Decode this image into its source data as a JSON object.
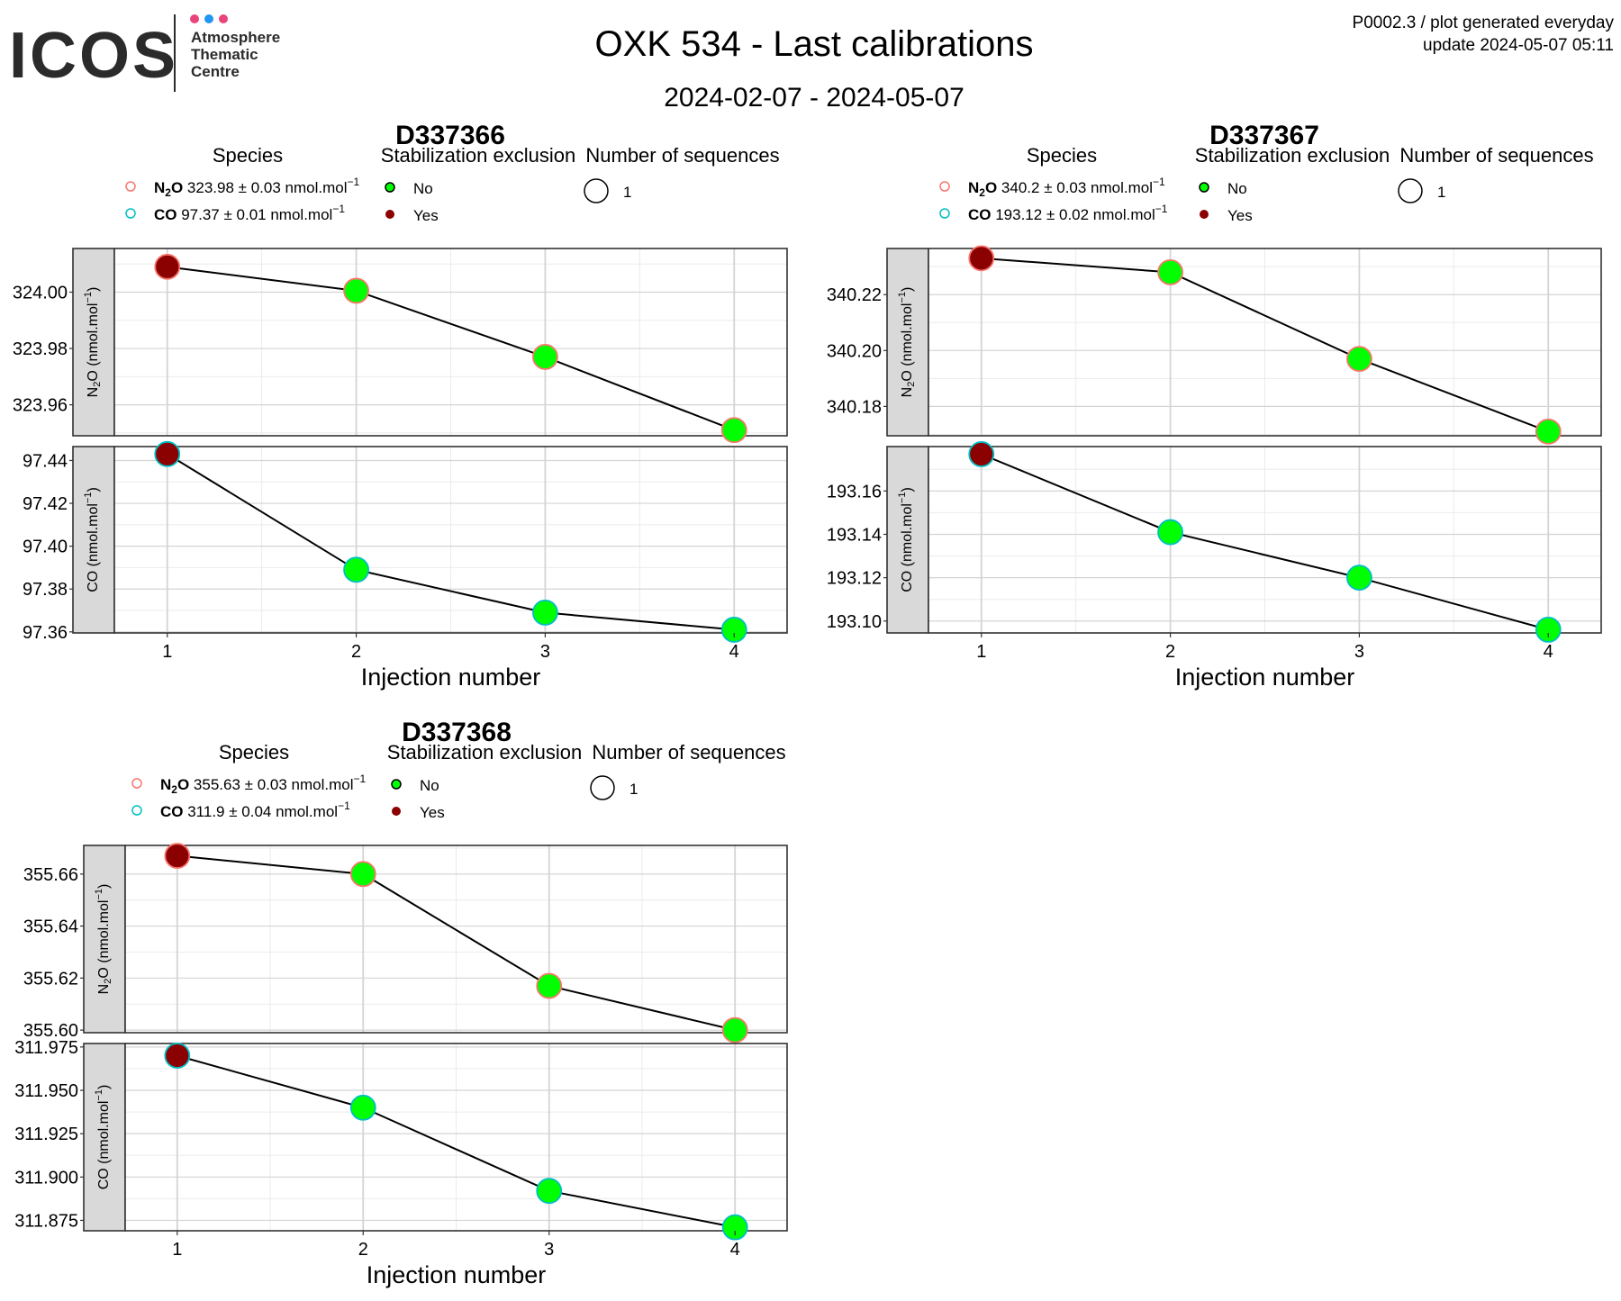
{
  "logo": {
    "brand": "ICOS",
    "line1": "Atmosphere",
    "line2": "Thematic",
    "line3": "Centre",
    "dot_colors": [
      "#e8457a",
      "#2196f3",
      "#e8457a"
    ]
  },
  "header": {
    "title": "OXK 534 - Last calibrations",
    "subtitle": "2024-02-07 - 2024-05-07",
    "info_line1": "P0002.3 / plot generated everyday",
    "info_line2": "update  2024-05-07 05:11"
  },
  "legend_labels": {
    "species": "Species",
    "stabilization": "Stabilization exclusion",
    "sequences": "Number of sequences",
    "no": "No",
    "yes": "Yes",
    "seq_count": "1"
  },
  "colors": {
    "no_fill": "#00ff00",
    "yes_fill": "#8b0000",
    "n2o_outline": "#f8766d",
    "co_outline": "#00bfc4",
    "line": "#000000"
  },
  "chart_data": [
    {
      "type": "line",
      "title": "D337366",
      "xlabel": "Injection number",
      "x": [
        1,
        2,
        3,
        4
      ],
      "excluded": [
        true,
        false,
        false,
        false
      ],
      "legend": [
        {
          "species": "N2O",
          "text": "323.98 ± 0.03 nmol.mol"
        },
        {
          "species": "CO",
          "text": "97.37 ± 0.01 nmol.mol"
        }
      ],
      "panels": [
        {
          "species": "N2O",
          "ylabel": "N2O (nmol.mol-1)",
          "values": [
            324.009,
            324.0005,
            323.977,
            323.951
          ],
          "ylim": [
            323.949,
            324.0155
          ],
          "ticks": [
            323.96,
            323.98,
            324.0
          ],
          "tick_labels": [
            "323.96",
            "323.98",
            "324.00"
          ]
        },
        {
          "species": "CO",
          "ylabel": "CO (nmol.mol-1)",
          "values": [
            97.443,
            97.389,
            97.369,
            97.361
          ],
          "ylim": [
            97.3595,
            97.4465
          ],
          "ticks": [
            97.36,
            97.38,
            97.4,
            97.42,
            97.44
          ],
          "tick_labels": [
            "97.36",
            "97.38",
            "97.40",
            "97.42",
            "97.44"
          ]
        }
      ]
    },
    {
      "type": "line",
      "title": "D337367",
      "xlabel": "Injection number",
      "x": [
        1,
        2,
        3,
        4
      ],
      "excluded": [
        true,
        false,
        false,
        false
      ],
      "legend": [
        {
          "species": "N2O",
          "text": "340.2 ± 0.03 nmol.mol"
        },
        {
          "species": "CO",
          "text": "193.12 ± 0.02 nmol.mol"
        }
      ],
      "panels": [
        {
          "species": "N2O",
          "ylabel": "N2O (nmol.mol-1)",
          "values": [
            340.233,
            340.228,
            340.197,
            340.171
          ],
          "ylim": [
            340.1695,
            340.2365
          ],
          "ticks": [
            340.18,
            340.2,
            340.22
          ],
          "tick_labels": [
            "340.18",
            "340.20",
            "340.22"
          ]
        },
        {
          "species": "CO",
          "ylabel": "CO (nmol.mol-1)",
          "values": [
            193.177,
            193.141,
            193.12,
            193.096
          ],
          "ylim": [
            193.0945,
            193.1805
          ],
          "ticks": [
            193.1,
            193.12,
            193.14,
            193.16
          ],
          "tick_labels": [
            "193.10",
            "193.12",
            "193.14",
            "193.16"
          ]
        }
      ]
    },
    {
      "type": "line",
      "title": "D337368",
      "xlabel": "Injection number",
      "x": [
        1,
        2,
        3,
        4
      ],
      "excluded": [
        true,
        false,
        false,
        false
      ],
      "legend": [
        {
          "species": "N2O",
          "text": "355.63 ± 0.03 nmol.mol"
        },
        {
          "species": "CO",
          "text": "311.9 ± 0.04 nmol.mol"
        }
      ],
      "panels": [
        {
          "species": "N2O",
          "ylabel": "N2O (nmol.mol-1)",
          "values": [
            355.667,
            355.66,
            355.617,
            355.6
          ],
          "ylim": [
            355.599,
            355.671
          ],
          "ticks": [
            355.6,
            355.62,
            355.64,
            355.66
          ],
          "tick_labels": [
            "355.60",
            "355.62",
            "355.64",
            "355.66"
          ]
        },
        {
          "species": "CO",
          "ylabel": "CO (nmol.mol-1)",
          "values": [
            311.97,
            311.94,
            311.892,
            311.871
          ],
          "ylim": [
            311.869,
            311.977
          ],
          "ticks": [
            311.875,
            311.9,
            311.925,
            311.95,
            311.975
          ],
          "tick_labels": [
            "311.875",
            "311.900",
            "311.925",
            "311.950",
            "311.975"
          ]
        }
      ]
    }
  ]
}
